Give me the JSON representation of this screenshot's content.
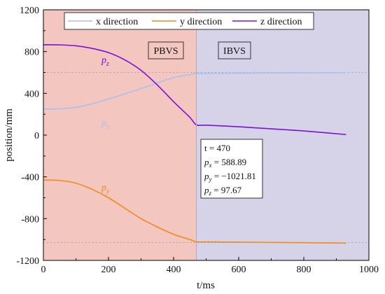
{
  "chart_data": {
    "type": "line",
    "xlabel": "t/ms",
    "ylabel": "position/mm",
    "xlim": [
      0,
      1000
    ],
    "ylim": [
      -1200,
      1200
    ],
    "xticks": [
      0,
      200,
      400,
      600,
      800,
      1000
    ],
    "yticks": [
      -1200,
      -800,
      -400,
      0,
      400,
      800,
      1200
    ],
    "xtick_labels": [
      "0",
      "200",
      "400",
      "600",
      "800",
      "1000"
    ],
    "ytick_labels": [
      "-1200",
      "-800",
      "-400",
      "0",
      "400",
      "800",
      "1200"
    ],
    "grid": false,
    "legend_position": "top",
    "regions": [
      {
        "label": "PBVS",
        "x_range": [
          0,
          470
        ],
        "color": "#f4c6c0"
      },
      {
        "label": "IBVS",
        "x_range": [
          470,
          1000
        ],
        "color": "#d6d3e8"
      }
    ],
    "reference_lines": [
      {
        "y": 600
      },
      {
        "y": -1030
      }
    ],
    "switch_line_x": 470,
    "series": [
      {
        "name": "x direction",
        "curve_label": "px",
        "color": "#a8c1ee",
        "x": [
          0,
          50,
          100,
          150,
          200,
          250,
          300,
          350,
          400,
          450,
          470,
          500,
          600,
          700,
          800,
          930
        ],
        "y": [
          250,
          252,
          265,
          300,
          345,
          395,
          445,
          500,
          550,
          580,
          589,
          590,
          593,
          595,
          597,
          598
        ]
      },
      {
        "name": "y direction",
        "curve_label": "py",
        "color": "#f08a1c",
        "x": [
          0,
          50,
          100,
          150,
          200,
          250,
          300,
          350,
          400,
          450,
          470,
          500,
          600,
          700,
          800,
          930
        ],
        "y": [
          -430,
          -435,
          -460,
          -520,
          -600,
          -700,
          -800,
          -880,
          -950,
          -1000,
          -1022,
          -1023,
          -1025,
          -1028,
          -1030,
          -1035
        ]
      },
      {
        "name": "z direction",
        "curve_label": "pz",
        "color": "#7b10d8",
        "x": [
          0,
          50,
          100,
          150,
          200,
          250,
          300,
          350,
          400,
          450,
          470,
          500,
          600,
          700,
          800,
          930
        ],
        "y": [
          865,
          864,
          855,
          830,
          790,
          720,
          620,
          480,
          320,
          170,
          98,
          95,
          80,
          60,
          40,
          5
        ]
      }
    ],
    "annotation": {
      "t_label": "t = 470",
      "px_label": "588.89",
      "py_label": "−1021.81",
      "pz_label": "97.67"
    }
  }
}
